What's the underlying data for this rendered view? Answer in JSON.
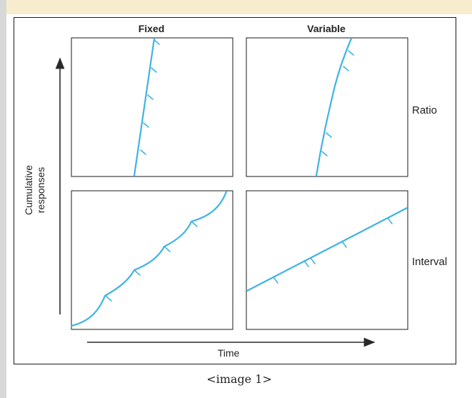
{
  "colors": {
    "curve": "#3fb3e2",
    "frame": "#1a1a1a",
    "axis": "#2a2a2a",
    "band": "#f7eccd"
  },
  "diagram": {
    "column_headers": {
      "fixed": "Fixed",
      "variable": "Variable"
    },
    "row_labels": {
      "ratio": "Ratio",
      "interval": "Interval"
    },
    "y_axis_label": {
      "line1": "Cumulative",
      "line2": "responses"
    },
    "x_axis_label": "Time"
  },
  "caption": "<image 1>"
}
